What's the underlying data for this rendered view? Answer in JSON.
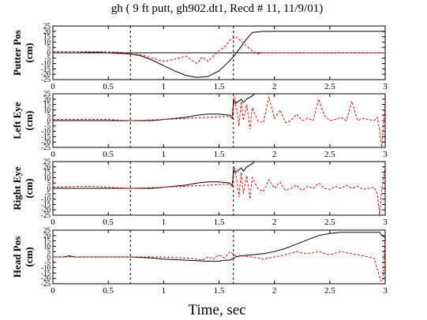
{
  "title": "gh ( 9 ft putt, gh902.dt1, Recd # 11, 11/9/01)",
  "xlabel": "Time, sec",
  "colors": {
    "series_1": "#000000",
    "series_2": "#ff0000",
    "markers": "#000000"
  },
  "chart_data": [
    {
      "type": "line",
      "ylabel": [
        "Putter Pos",
        "(cm)"
      ],
      "xlim": [
        0,
        3
      ],
      "ylim": [
        -25,
        25
      ],
      "xticks": [
        "0",
        "0.5",
        "1",
        "1.5",
        "2",
        "2.5",
        "3"
      ],
      "yticks": [
        "25",
        "20",
        "15",
        "10",
        "5",
        "0",
        "-5",
        "-10",
        "-15",
        "-20",
        "-25"
      ],
      "hline": 0,
      "vlines": [
        0.7,
        1.63
      ],
      "series": [
        {
          "color": "#000000",
          "style": "solid",
          "x": [
            0,
            0.2,
            0.4,
            0.5,
            0.6,
            0.7,
            0.8,
            0.9,
            1.0,
            1.1,
            1.2,
            1.3,
            1.4,
            1.5,
            1.55,
            1.6,
            1.65,
            1.7,
            1.75,
            1.8,
            1.9,
            2.0,
            2.5,
            3.0
          ],
          "y": [
            0,
            0,
            0.5,
            0,
            -0.5,
            -1,
            -3,
            -7,
            -12,
            -17,
            -21,
            -23,
            -22,
            -17,
            -12,
            -7,
            -1,
            6,
            13,
            19,
            20,
            20,
            20,
            20
          ]
        },
        {
          "color": "#ff0000",
          "style": "dashed",
          "x": [
            0,
            0.2,
            0.4,
            0.6,
            0.7,
            0.8,
            0.9,
            1.0,
            1.1,
            1.2,
            1.3,
            1.35,
            1.4,
            1.5,
            1.55,
            1.6,
            1.65,
            1.7,
            1.75,
            1.8,
            1.85,
            1.9,
            2.0,
            2.5,
            3.0
          ],
          "y": [
            1,
            1,
            1,
            0.5,
            -1,
            -2,
            -5,
            -8,
            -6,
            -3,
            -10,
            -4,
            -8,
            2,
            5,
            12,
            15,
            11,
            6,
            2,
            -1,
            0,
            0,
            0,
            0
          ]
        }
      ]
    },
    {
      "type": "line",
      "ylabel": [
        "Left Eye",
        "(cm)"
      ],
      "xlim": [
        0,
        3
      ],
      "ylim": [
        -25,
        25
      ],
      "xticks": [
        "0",
        "0.5",
        "1",
        "1.5",
        "2",
        "2.5",
        "3"
      ],
      "yticks": [
        "25",
        "20",
        "15",
        "10",
        "5",
        "0",
        "-5",
        "-10",
        "-15",
        "-20",
        "-25"
      ],
      "vlines": [
        0.7,
        1.63
      ],
      "series": [
        {
          "color": "#000000",
          "style": "solid",
          "x": [
            0,
            0.3,
            0.7,
            0.9,
            1.0,
            1.1,
            1.2,
            1.3,
            1.4,
            1.5,
            1.6,
            1.62,
            1.63,
            1.65,
            1.7,
            1.72,
            1.75,
            1.8,
            1.82
          ],
          "y": [
            0,
            0,
            0,
            0,
            1,
            2,
            3,
            5,
            6,
            6,
            5,
            2,
            18,
            16,
            20,
            17,
            20,
            23,
            25
          ]
        },
        {
          "color": "#ff0000",
          "style": "dashed",
          "x": [
            0,
            0.5,
            0.7,
            1.0,
            1.2,
            1.4,
            1.6,
            1.62,
            1.64,
            1.66,
            1.68,
            1.7,
            1.72,
            1.75,
            1.78,
            1.8,
            1.85,
            1.9,
            1.95,
            2.0,
            2.05,
            2.1,
            2.15,
            2.2,
            2.25,
            2.3,
            2.35,
            2.4,
            2.45,
            2.5,
            2.55,
            2.6,
            2.65,
            2.7,
            2.75,
            2.8,
            2.85,
            2.9,
            2.93,
            2.95,
            2.97,
            3.0
          ],
          "y": [
            1,
            1,
            0,
            1,
            2,
            3,
            4,
            2,
            22,
            10,
            -5,
            18,
            0,
            15,
            -8,
            12,
            0,
            -2,
            22,
            2,
            10,
            -2,
            0,
            6,
            0,
            2,
            0,
            20,
            5,
            0,
            1,
            3,
            0,
            18,
            0,
            2,
            1,
            0,
            3,
            -10,
            -25,
            18
          ]
        }
      ]
    },
    {
      "type": "line",
      "ylabel": [
        "Right Eye",
        "(cm)"
      ],
      "xlim": [
        0,
        3
      ],
      "ylim": [
        -25,
        25
      ],
      "xticks": [
        "0",
        "0.5",
        "1",
        "1.5",
        "2",
        "2.5",
        "3"
      ],
      "yticks": [
        "25",
        "20",
        "15",
        "10",
        "5",
        "0",
        "-5",
        "-10",
        "-15",
        "-20",
        "-25"
      ],
      "vlines": [
        0.7,
        1.63
      ],
      "series": [
        {
          "color": "#000000",
          "style": "solid",
          "x": [
            0,
            0.3,
            0.7,
            0.9,
            1.0,
            1.1,
            1.2,
            1.3,
            1.4,
            1.5,
            1.6,
            1.62,
            1.63,
            1.65,
            1.7,
            1.72,
            1.75,
            1.8,
            1.82
          ],
          "y": [
            0,
            0,
            0,
            0,
            1,
            2,
            3,
            5,
            6,
            6,
            5,
            2,
            17,
            15,
            19,
            16,
            20,
            23,
            25
          ]
        },
        {
          "color": "#ff0000",
          "style": "dashed",
          "x": [
            0,
            0.3,
            0.5,
            0.7,
            1.0,
            1.2,
            1.4,
            1.6,
            1.62,
            1.64,
            1.66,
            1.68,
            1.7,
            1.72,
            1.75,
            1.78,
            1.8,
            1.85,
            1.9,
            1.95,
            2.0,
            2.05,
            2.1,
            2.15,
            2.2,
            2.25,
            2.3,
            2.35,
            2.4,
            2.45,
            2.5,
            2.55,
            2.6,
            2.65,
            2.7,
            2.75,
            2.8,
            2.85,
            2.9,
            2.93,
            2.95,
            2.97,
            3.0
          ],
          "y": [
            1,
            2,
            1,
            0,
            1,
            2,
            3,
            4,
            2,
            20,
            8,
            -8,
            15,
            -5,
            12,
            -10,
            10,
            0,
            -3,
            8,
            0,
            6,
            -2,
            0,
            3,
            -2,
            2,
            0,
            5,
            0,
            -1,
            2,
            0,
            3,
            0,
            2,
            -1,
            0,
            1,
            -5,
            -25,
            0,
            20
          ]
        }
      ]
    },
    {
      "type": "line",
      "ylabel": [
        "Head Pos",
        "(cm)"
      ],
      "xlim": [
        0,
        3
      ],
      "ylim": [
        -25,
        25
      ],
      "xticks": [
        "0",
        "0.5",
        "1",
        "1.5",
        "2",
        "2.5",
        "3"
      ],
      "yticks": [
        "25",
        "20",
        "15",
        "10",
        "5",
        "0",
        "-5",
        "-10",
        "-15",
        "-20",
        "-25"
      ],
      "vlines": [
        0.7,
        1.63
      ],
      "series": [
        {
          "color": "#000000",
          "style": "solid",
          "x": [
            0,
            0.1,
            0.15,
            0.2,
            0.4,
            0.7,
            0.9,
            1.0,
            1.2,
            1.4,
            1.5,
            1.55,
            1.6,
            1.65,
            1.7,
            1.8,
            1.9,
            2.0,
            2.1,
            2.2,
            2.3,
            2.4,
            2.5,
            2.6,
            2.7,
            2.8,
            2.9,
            2.95,
            2.97,
            3.0
          ],
          "y": [
            0,
            0,
            1,
            0,
            0,
            0,
            -1,
            -2,
            -3,
            -4,
            -4,
            -3,
            -3,
            0,
            1,
            2,
            3,
            5,
            8,
            12,
            16,
            20,
            22,
            23,
            23,
            23,
            23,
            23,
            20,
            18
          ]
        },
        {
          "color": "#ff0000",
          "style": "dashed",
          "x": [
            0,
            0.5,
            0.7,
            1.0,
            1.2,
            1.3,
            1.35,
            1.4,
            1.45,
            1.5,
            1.55,
            1.6,
            1.65,
            1.7,
            1.8,
            1.9,
            2.0,
            2.1,
            2.2,
            2.3,
            2.4,
            2.5,
            2.6,
            2.7,
            2.8,
            2.9,
            2.93,
            2.96,
            2.98,
            3.0
          ],
          "y": [
            0,
            0,
            0,
            0,
            -1,
            -2,
            -3,
            0,
            -2,
            2,
            -1,
            5,
            1,
            1,
            0,
            -2,
            0,
            2,
            5,
            3,
            5,
            2,
            5,
            3,
            1,
            -1,
            -12,
            -22,
            -22,
            20
          ]
        }
      ]
    }
  ]
}
